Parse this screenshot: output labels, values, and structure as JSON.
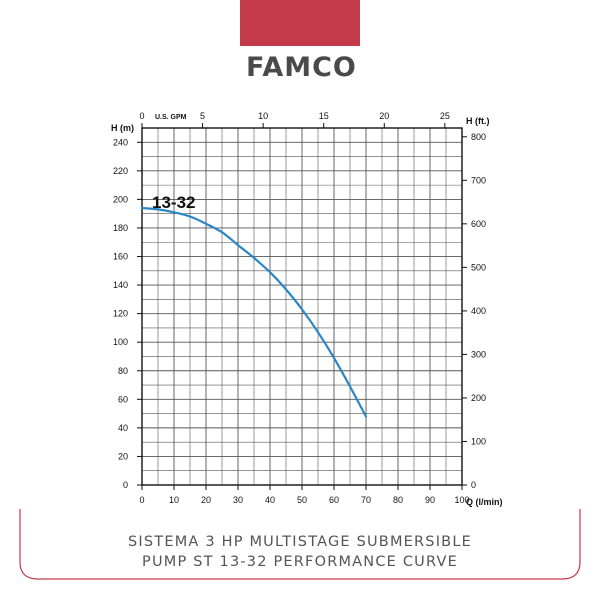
{
  "brand": {
    "name": "FAMCO",
    "bar_color": "#c43a4a",
    "text_color": "#4a4a4a",
    "accent_color": "#c43a4a"
  },
  "caption": {
    "line1": "SISTEMA 3 HP MULTISTAGE SUBMERSIBLE",
    "line2": "PUMP ST 13-32 PERFORMANCE CURVE",
    "color": "#555555",
    "frame_color": "#c43a4a"
  },
  "chart_data": {
    "type": "line",
    "series_label": "13-32",
    "curve_color": "#2b86c5",
    "grid": true,
    "xlabel": "Q (l/min)",
    "ylabel_left": "H (m)",
    "ylabel_right": "H (ft.)",
    "x2label": "U.S. GPM",
    "xlim": [
      0,
      100
    ],
    "ylim": [
      0,
      250
    ],
    "x_ticks": [
      0,
      10,
      20,
      30,
      40,
      50,
      60,
      70,
      80,
      90,
      100
    ],
    "y_ticks": [
      0,
      20,
      40,
      60,
      80,
      100,
      120,
      140,
      160,
      180,
      200,
      220,
      240
    ],
    "gpm_ticks": [
      0,
      5,
      10,
      15,
      20,
      25
    ],
    "ft_ticks": [
      0,
      100,
      200,
      300,
      400,
      500,
      600,
      700,
      800
    ],
    "series": [
      {
        "name": "13-32",
        "x": [
          0,
          5,
          10,
          15,
          20,
          25,
          30,
          35,
          40,
          45,
          50,
          55,
          60,
          65,
          70
        ],
        "y": [
          194,
          193,
          191,
          188,
          183,
          177,
          168,
          159,
          149,
          137,
          123,
          107,
          89,
          69,
          48
        ]
      }
    ]
  }
}
